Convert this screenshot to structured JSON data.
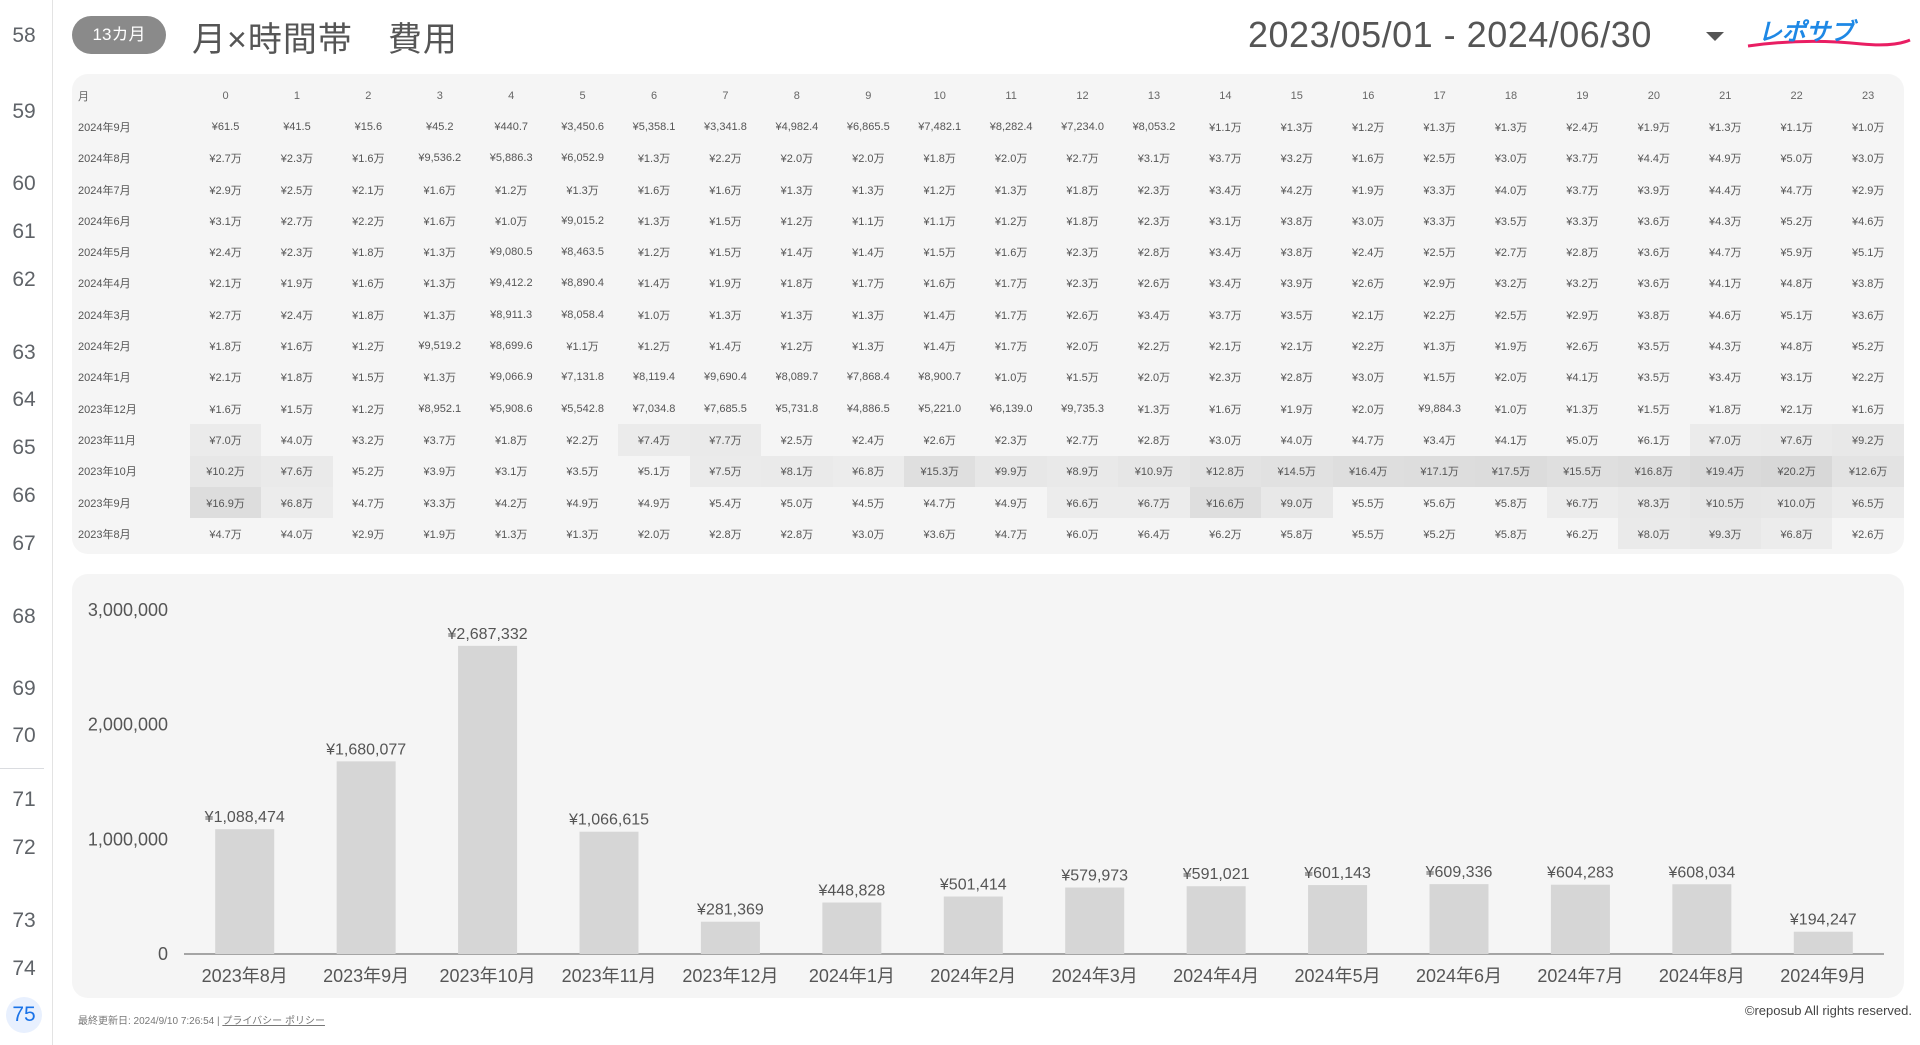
{
  "row_numbers": [
    "58",
    "59",
    "60",
    "61",
    "62",
    "63",
    "64",
    "65",
    "66",
    "67",
    "68",
    "69",
    "70",
    "71",
    "72",
    "73",
    "74",
    "75"
  ],
  "active_row": "75",
  "header": {
    "badge": "13カ月",
    "title": "月×時間帯　費用",
    "date_range": "2023/05/01 - 2024/06/30",
    "logo_text": "レポサブ",
    "logo_color": "#1e88e5",
    "logo_accent": "#e91e63"
  },
  "table": {
    "corner_header": "月",
    "hours": [
      "0",
      "1",
      "2",
      "3",
      "4",
      "5",
      "6",
      "7",
      "8",
      "9",
      "10",
      "11",
      "12",
      "13",
      "14",
      "15",
      "16",
      "17",
      "18",
      "19",
      "20",
      "21",
      "22",
      "23"
    ],
    "rows": [
      {
        "month": "2024年9月",
        "cells": [
          "¥61.5",
          "¥41.5",
          "¥15.6",
          "¥45.2",
          "¥440.7",
          "¥3,450.6",
          "¥5,358.1",
          "¥3,341.8",
          "¥4,982.4",
          "¥6,865.5",
          "¥7,482.1",
          "¥8,282.4",
          "¥7,234.0",
          "¥8,053.2",
          "¥1.1万",
          "¥1.3万",
          "¥1.2万",
          "¥1.3万",
          "¥1.3万",
          "¥2.4万",
          "¥1.9万",
          "¥1.3万",
          "¥1.1万",
          "¥1.0万"
        ]
      },
      {
        "month": "2024年8月",
        "cells": [
          "¥2.7万",
          "¥2.3万",
          "¥1.6万",
          "¥9,536.2",
          "¥5,886.3",
          "¥6,052.9",
          "¥1.3万",
          "¥2.2万",
          "¥2.0万",
          "¥2.0万",
          "¥1.8万",
          "¥2.0万",
          "¥2.7万",
          "¥3.1万",
          "¥3.7万",
          "¥3.2万",
          "¥1.6万",
          "¥2.5万",
          "¥3.0万",
          "¥3.7万",
          "¥4.4万",
          "¥4.9万",
          "¥5.0万",
          "¥3.0万"
        ]
      },
      {
        "month": "2024年7月",
        "cells": [
          "¥2.9万",
          "¥2.5万",
          "¥2.1万",
          "¥1.6万",
          "¥1.2万",
          "¥1.3万",
          "¥1.6万",
          "¥1.6万",
          "¥1.3万",
          "¥1.3万",
          "¥1.2万",
          "¥1.3万",
          "¥1.8万",
          "¥2.3万",
          "¥3.4万",
          "¥4.2万",
          "¥1.9万",
          "¥3.3万",
          "¥4.0万",
          "¥3.7万",
          "¥3.9万",
          "¥4.4万",
          "¥4.7万",
          "¥2.9万"
        ]
      },
      {
        "month": "2024年6月",
        "cells": [
          "¥3.1万",
          "¥2.7万",
          "¥2.2万",
          "¥1.6万",
          "¥1.0万",
          "¥9,015.2",
          "¥1.3万",
          "¥1.5万",
          "¥1.2万",
          "¥1.1万",
          "¥1.1万",
          "¥1.2万",
          "¥1.8万",
          "¥2.3万",
          "¥3.1万",
          "¥3.8万",
          "¥3.0万",
          "¥3.3万",
          "¥3.5万",
          "¥3.3万",
          "¥3.6万",
          "¥4.3万",
          "¥5.2万",
          "¥4.6万"
        ]
      },
      {
        "month": "2024年5月",
        "cells": [
          "¥2.4万",
          "¥2.3万",
          "¥1.8万",
          "¥1.3万",
          "¥9,080.5",
          "¥8,463.5",
          "¥1.2万",
          "¥1.5万",
          "¥1.4万",
          "¥1.4万",
          "¥1.5万",
          "¥1.6万",
          "¥2.3万",
          "¥2.8万",
          "¥3.4万",
          "¥3.8万",
          "¥2.4万",
          "¥2.5万",
          "¥2.7万",
          "¥2.8万",
          "¥3.6万",
          "¥4.7万",
          "¥5.9万",
          "¥5.1万"
        ]
      },
      {
        "month": "2024年4月",
        "cells": [
          "¥2.1万",
          "¥1.9万",
          "¥1.6万",
          "¥1.3万",
          "¥9,412.2",
          "¥8,890.4",
          "¥1.4万",
          "¥1.9万",
          "¥1.8万",
          "¥1.7万",
          "¥1.6万",
          "¥1.7万",
          "¥2.3万",
          "¥2.6万",
          "¥3.4万",
          "¥3.9万",
          "¥2.6万",
          "¥2.9万",
          "¥3.2万",
          "¥3.2万",
          "¥3.6万",
          "¥4.1万",
          "¥4.8万",
          "¥3.8万"
        ]
      },
      {
        "month": "2024年3月",
        "cells": [
          "¥2.7万",
          "¥2.4万",
          "¥1.8万",
          "¥1.3万",
          "¥8,911.3",
          "¥8,058.4",
          "¥1.0万",
          "¥1.3万",
          "¥1.3万",
          "¥1.3万",
          "¥1.4万",
          "¥1.7万",
          "¥2.6万",
          "¥3.4万",
          "¥3.7万",
          "¥3.5万",
          "¥2.1万",
          "¥2.2万",
          "¥2.5万",
          "¥2.9万",
          "¥3.8万",
          "¥4.6万",
          "¥5.1万",
          "¥3.6万"
        ]
      },
      {
        "month": "2024年2月",
        "cells": [
          "¥1.8万",
          "¥1.6万",
          "¥1.2万",
          "¥9,519.2",
          "¥8,699.6",
          "¥1.1万",
          "¥1.2万",
          "¥1.4万",
          "¥1.2万",
          "¥1.3万",
          "¥1.4万",
          "¥1.7万",
          "¥2.0万",
          "¥2.2万",
          "¥2.1万",
          "¥2.1万",
          "¥2.2万",
          "¥1.3万",
          "¥1.9万",
          "¥2.6万",
          "¥3.5万",
          "¥4.3万",
          "¥4.8万",
          "¥5.2万"
        ]
      },
      {
        "month": "2024年1月",
        "cells": [
          "¥2.1万",
          "¥1.8万",
          "¥1.5万",
          "¥1.3万",
          "¥9,066.9",
          "¥7,131.8",
          "¥8,119.4",
          "¥9,690.4",
          "¥8,089.7",
          "¥7,868.4",
          "¥8,900.7",
          "¥1.0万",
          "¥1.5万",
          "¥2.0万",
          "¥2.3万",
          "¥2.8万",
          "¥3.0万",
          "¥1.5万",
          "¥2.0万",
          "¥4.1万",
          "¥3.5万",
          "¥3.4万",
          "¥3.1万",
          "¥2.2万"
        ]
      },
      {
        "month": "2023年12月",
        "cells": [
          "¥1.6万",
          "¥1.5万",
          "¥1.2万",
          "¥8,952.1",
          "¥5,908.6",
          "¥5,542.8",
          "¥7,034.8",
          "¥7,685.5",
          "¥5,731.8",
          "¥4,886.5",
          "¥5,221.0",
          "¥6,139.0",
          "¥9,735.3",
          "¥1.3万",
          "¥1.6万",
          "¥1.9万",
          "¥2.0万",
          "¥9,884.3",
          "¥1.0万",
          "¥1.3万",
          "¥1.5万",
          "¥1.8万",
          "¥2.1万",
          "¥1.6万"
        ]
      },
      {
        "month": "2023年11月",
        "cells": [
          "¥7.0万",
          "¥4.0万",
          "¥3.2万",
          "¥3.7万",
          "¥1.8万",
          "¥2.2万",
          "¥7.4万",
          "¥7.7万",
          "¥2.5万",
          "¥2.4万",
          "¥2.6万",
          "¥2.3万",
          "¥2.7万",
          "¥2.8万",
          "¥3.0万",
          "¥4.0万",
          "¥4.7万",
          "¥3.4万",
          "¥4.1万",
          "¥5.0万",
          "¥6.1万",
          "¥7.0万",
          "¥7.6万",
          "¥9.2万"
        ]
      },
      {
        "month": "2023年10月",
        "cells": [
          "¥10.2万",
          "¥7.6万",
          "¥5.2万",
          "¥3.9万",
          "¥3.1万",
          "¥3.5万",
          "¥5.1万",
          "¥7.5万",
          "¥8.1万",
          "¥6.8万",
          "¥15.3万",
          "¥9.9万",
          "¥8.9万",
          "¥10.9万",
          "¥12.8万",
          "¥14.5万",
          "¥16.4万",
          "¥17.1万",
          "¥17.5万",
          "¥15.5万",
          "¥16.8万",
          "¥19.4万",
          "¥20.2万",
          "¥12.6万"
        ]
      },
      {
        "month": "2023年9月",
        "cells": [
          "¥16.9万",
          "¥6.8万",
          "¥4.7万",
          "¥3.3万",
          "¥4.2万",
          "¥4.9万",
          "¥4.9万",
          "¥5.4万",
          "¥5.0万",
          "¥4.5万",
          "¥4.7万",
          "¥4.9万",
          "¥6.6万",
          "¥6.7万",
          "¥16.6万",
          "¥9.0万",
          "¥5.5万",
          "¥5.6万",
          "¥5.8万",
          "¥6.7万",
          "¥8.3万",
          "¥10.5万",
          "¥10.0万",
          "¥6.5万"
        ]
      },
      {
        "month": "2023年8月",
        "cells": [
          "¥4.7万",
          "¥4.0万",
          "¥2.9万",
          "¥1.9万",
          "¥1.3万",
          "¥1.3万",
          "¥2.0万",
          "¥2.8万",
          "¥2.8万",
          "¥3.0万",
          "¥3.6万",
          "¥4.7万",
          "¥6.0万",
          "¥6.4万",
          "¥6.2万",
          "¥5.8万",
          "¥5.5万",
          "¥5.2万",
          "¥5.8万",
          "¥6.2万",
          "¥8.0万",
          "¥9.3万",
          "¥6.8万",
          "¥2.6万"
        ]
      }
    ]
  },
  "chart_data": {
    "type": "bar",
    "categories": [
      "2023年8月",
      "2023年9月",
      "2023年10月",
      "2023年11月",
      "2023年12月",
      "2024年1月",
      "2024年2月",
      "2024年3月",
      "2024年4月",
      "2024年5月",
      "2024年6月",
      "2024年7月",
      "2024年8月",
      "2024年9月"
    ],
    "values": [
      1088474,
      1680077,
      2687332,
      1066615,
      281369,
      448828,
      501414,
      579973,
      591021,
      601143,
      609336,
      604283,
      608034,
      194247
    ],
    "data_labels": [
      "¥1,088,474",
      "¥1,680,077",
      "¥2,687,332",
      "¥1,066,615",
      "¥281,369",
      "¥448,828",
      "¥501,414",
      "¥579,973",
      "¥591,021",
      "¥601,143",
      "¥609,336",
      "¥604,283",
      "¥608,034",
      "¥194,247"
    ],
    "y_ticks": [
      0,
      1000000,
      2000000,
      3000000
    ],
    "y_tick_labels": [
      "0",
      "1,000,000",
      "2,000,000",
      "3,000,000"
    ],
    "ylim": [
      0,
      3000000
    ],
    "bar_color": "#d6d6d6",
    "grid": false,
    "legend": "none"
  },
  "footer": {
    "last_updated": "最終更新日: 2024/9/10 7:26:54",
    "separator": "|",
    "privacy": "プライバシー ポリシー",
    "copyright": "©reposub All rights reserved."
  }
}
